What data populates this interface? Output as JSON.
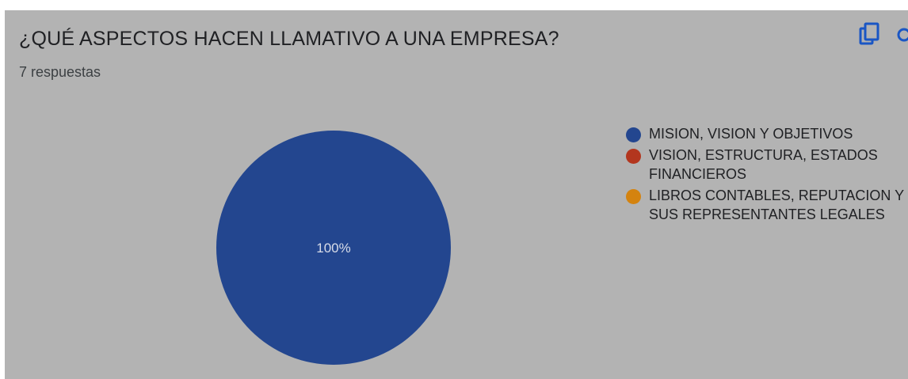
{
  "header": {
    "title": "¿QUÉ ASPECTOS HACEN LLAMATIVO A UNA EMPRESA?",
    "responses": "7 respuestas"
  },
  "toolbar": {
    "copy_icon": "copy-icon",
    "search_icon": "search-icon"
  },
  "chart_data": {
    "type": "pie",
    "categories": [
      "MISION, VISION Y OBJETIVOS",
      "VISION, ESTRUCTURA, ESTADOS\nFINANCIEROS",
      "LIBROS CONTABLES, REPUTACION Y\nSUS REPRESENTANTES LEGALES"
    ],
    "values": [
      100,
      0,
      0
    ],
    "colors": [
      "#23468f",
      "#b3361e",
      "#d4830f"
    ],
    "data_labels": [
      "100%"
    ],
    "legend_position": "right"
  }
}
